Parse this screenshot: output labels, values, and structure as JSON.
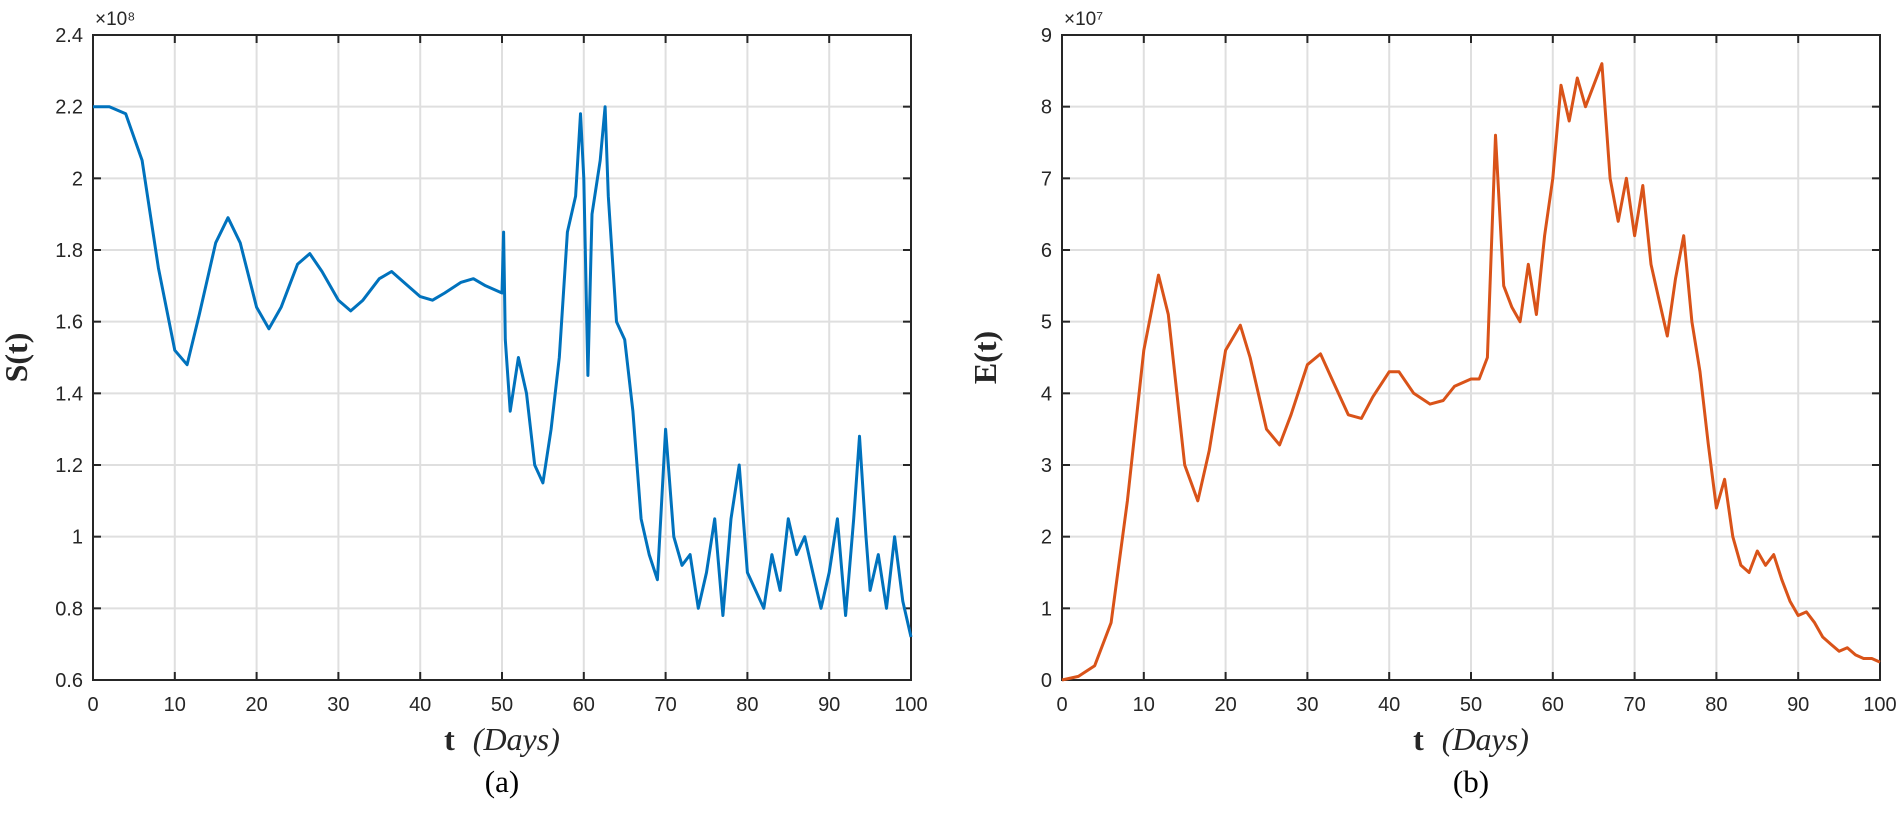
{
  "chart_data": [
    {
      "type": "line",
      "panel_caption": "(a)",
      "xlabel_bold": "t",
      "xlabel_italic": "(Days)",
      "ylabel": "S(t)",
      "y_exponent": "×10⁸",
      "color": "#0072BD",
      "xlim": [
        0,
        100
      ],
      "ylim": [
        0.6,
        2.4
      ],
      "xticks": [
        "0",
        "10",
        "20",
        "30",
        "40",
        "50",
        "60",
        "70",
        "80",
        "90",
        "100"
      ],
      "yticks": [
        "0.6",
        "0.8",
        "1",
        "1.2",
        "1.4",
        "1.6",
        "1.8",
        "2",
        "2.2",
        "2.4"
      ],
      "grid": true,
      "series": [
        {
          "x": [
            0,
            2,
            4,
            6,
            8,
            10,
            11.5,
            13,
            15,
            16.5,
            18,
            20,
            21.5,
            23,
            25,
            26.5,
            28,
            30,
            31.5,
            33,
            35,
            36.5,
            38,
            40,
            41.5,
            43,
            45,
            46.5,
            48,
            50,
            50.2,
            50.4,
            51,
            52,
            53,
            54,
            55,
            56,
            57,
            58,
            59,
            59.6,
            60,
            60.5,
            61,
            62,
            62.6,
            63,
            64,
            65,
            66,
            67,
            68,
            69,
            70,
            71,
            72,
            73,
            74,
            75,
            76,
            77,
            78,
            79,
            80,
            81,
            82,
            83,
            84,
            85,
            86,
            87,
            88,
            89,
            90,
            91,
            92,
            93,
            93.7,
            94.5,
            95,
            96,
            97,
            98,
            99,
            100
          ],
          "y": [
            2.2,
            2.2,
            2.18,
            2.05,
            1.75,
            1.52,
            1.48,
            1.62,
            1.82,
            1.89,
            1.82,
            1.64,
            1.58,
            1.64,
            1.76,
            1.79,
            1.74,
            1.66,
            1.63,
            1.66,
            1.72,
            1.74,
            1.71,
            1.67,
            1.66,
            1.68,
            1.71,
            1.72,
            1.7,
            1.68,
            1.85,
            1.55,
            1.35,
            1.5,
            1.4,
            1.2,
            1.15,
            1.3,
            1.5,
            1.85,
            1.95,
            2.18,
            2.0,
            1.45,
            1.9,
            2.05,
            2.2,
            1.95,
            1.6,
            1.55,
            1.35,
            1.05,
            0.95,
            0.88,
            1.3,
            1.0,
            0.92,
            0.95,
            0.8,
            0.9,
            1.05,
            0.78,
            1.05,
            1.2,
            0.9,
            0.85,
            0.8,
            0.95,
            0.85,
            1.05,
            0.95,
            1.0,
            0.9,
            0.8,
            0.9,
            1.05,
            0.78,
            1.05,
            1.28,
            1.0,
            0.85,
            0.95,
            0.8,
            1.0,
            0.82,
            0.72
          ]
        }
      ]
    },
    {
      "type": "line",
      "panel_caption": "(b)",
      "xlabel_bold": "t",
      "xlabel_italic": "(Days)",
      "ylabel": "E(t)",
      "y_exponent": "×10⁷",
      "color": "#D95319",
      "xlim": [
        0,
        100
      ],
      "ylim": [
        0,
        9
      ],
      "xticks": [
        "0",
        "10",
        "20",
        "30",
        "40",
        "50",
        "60",
        "70",
        "80",
        "90",
        "100"
      ],
      "yticks": [
        "0",
        "1",
        "2",
        "3",
        "4",
        "5",
        "6",
        "7",
        "8",
        "9"
      ],
      "grid": true,
      "series": [
        {
          "x": [
            0,
            2,
            4,
            6,
            8,
            10,
            11.8,
            13,
            15,
            16.6,
            18,
            20,
            21.8,
            23,
            25,
            26.6,
            28,
            30,
            31.6,
            33,
            35,
            36.6,
            38,
            40,
            41.2,
            43,
            45,
            46.6,
            48,
            50,
            51,
            52,
            53,
            54,
            55,
            56,
            57,
            58,
            59,
            60,
            61,
            62,
            63,
            64,
            65,
            66,
            67,
            68,
            69,
            70,
            71,
            72,
            73,
            74,
            75,
            76,
            77,
            78,
            79,
            80,
            81,
            82,
            83,
            84,
            85,
            86,
            87,
            88,
            89,
            90,
            91,
            92,
            93,
            94,
            95,
            96,
            97,
            98,
            99,
            100
          ],
          "y": [
            0.0,
            0.05,
            0.2,
            0.8,
            2.5,
            4.6,
            5.65,
            5.1,
            3.0,
            2.5,
            3.2,
            4.6,
            4.95,
            4.5,
            3.5,
            3.28,
            3.7,
            4.4,
            4.55,
            4.2,
            3.7,
            3.65,
            3.95,
            4.3,
            4.3,
            4.0,
            3.85,
            3.9,
            4.1,
            4.2,
            4.2,
            4.5,
            7.6,
            5.5,
            5.2,
            5.0,
            5.8,
            5.1,
            6.2,
            7.0,
            8.3,
            7.8,
            8.4,
            8.0,
            8.3,
            8.6,
            7.0,
            6.4,
            7.0,
            6.2,
            6.9,
            5.8,
            5.3,
            4.8,
            5.6,
            6.2,
            5.0,
            4.3,
            3.3,
            2.4,
            2.8,
            2.0,
            1.6,
            1.5,
            1.8,
            1.6,
            1.75,
            1.4,
            1.1,
            0.9,
            0.95,
            0.8,
            0.6,
            0.5,
            0.4,
            0.45,
            0.35,
            0.3,
            0.3,
            0.25
          ]
        }
      ]
    }
  ]
}
